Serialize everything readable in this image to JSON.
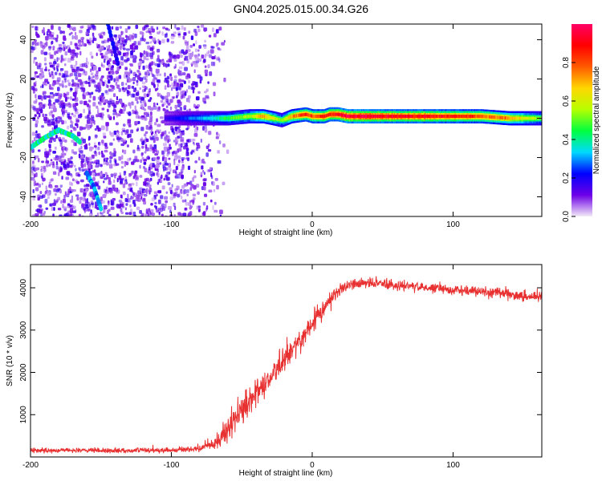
{
  "title": "GN04.2025.015.00.34.G26",
  "chart_data": [
    {
      "type": "heatmap",
      "xlabel": "Height of straight line (km)",
      "ylabel": "Frequency (Hz)",
      "xlim": [
        -200,
        163
      ],
      "ylim": [
        -50,
        48
      ],
      "xticks": [
        -200,
        -100,
        0,
        100
      ],
      "yticks": [
        -40,
        -20,
        0,
        20,
        40
      ],
      "grid": false,
      "noise_region_x": [
        -200,
        -65
      ],
      "ridge": {
        "x": [
          -105,
          -90,
          -80,
          -60,
          -45,
          -35,
          -28,
          -22,
          -15,
          -5,
          0,
          8,
          12,
          18,
          25,
          40,
          60,
          80,
          100,
          120,
          140,
          163
        ],
        "y": [
          0,
          0,
          0,
          0,
          1,
          1,
          0,
          -1,
          1,
          2,
          1,
          1,
          2,
          2,
          1,
          1,
          1,
          1,
          1,
          1,
          0,
          0
        ],
        "amplitude": [
          0.15,
          0.25,
          0.3,
          0.45,
          0.55,
          0.7,
          0.6,
          0.5,
          0.7,
          0.85,
          0.8,
          0.85,
          0.85,
          0.9,
          0.95,
          0.95,
          0.9,
          0.9,
          0.85,
          0.8,
          0.7,
          0.5
        ]
      },
      "streaks": [
        {
          "x": [
            -145,
            -138
          ],
          "y": [
            48,
            28
          ],
          "amplitude": 0.2
        },
        {
          "x": [
            -200,
            -190,
            -180,
            -170,
            -165
          ],
          "y": [
            -15,
            -10,
            -6,
            -9,
            -12
          ],
          "amplitude": 0.4
        },
        {
          "x": [
            -160,
            -155,
            -150
          ],
          "y": [
            -28,
            -35,
            -46
          ],
          "amplitude": 0.3
        }
      ],
      "colorbar": {
        "label": "Normalized spectral amplitude",
        "ticks": [
          0.0,
          0.2,
          0.4,
          0.6,
          0.8
        ],
        "range": [
          0,
          1
        ],
        "stops": [
          "#f2eaf7",
          "#6d00e6",
          "#0000ff",
          "#00d9ff",
          "#00ff40",
          "#b6ff00",
          "#ffd700",
          "#ff5a00",
          "#ff0000",
          "#ff0066"
        ]
      }
    },
    {
      "type": "line",
      "xlabel": "Height of straight line (km)",
      "ylabel": "SNR (10 * v/v)",
      "xlim": [
        -200,
        163
      ],
      "ylim": [
        0,
        4550
      ],
      "xticks": [
        -200,
        -100,
        0,
        100
      ],
      "yticks": [
        1000,
        2000,
        3000,
        4000
      ],
      "grid": false,
      "series": [
        {
          "color": "#e83030",
          "x": [
            -200,
            -180,
            -160,
            -140,
            -120,
            -100,
            -90,
            -80,
            -70,
            -65,
            -60,
            -55,
            -50,
            -45,
            -40,
            -35,
            -30,
            -25,
            -20,
            -15,
            -10,
            -5,
            0,
            5,
            10,
            15,
            20,
            25,
            30,
            40,
            50,
            60,
            70,
            80,
            90,
            100,
            110,
            120,
            130,
            140,
            150,
            163
          ],
          "y": [
            150,
            160,
            150,
            150,
            160,
            160,
            180,
            200,
            300,
            450,
            650,
            900,
            1100,
            1300,
            1500,
            1650,
            1850,
            2050,
            2300,
            2500,
            2700,
            2900,
            3150,
            3400,
            3600,
            3800,
            3950,
            4050,
            4100,
            4100,
            4100,
            4050,
            4050,
            4000,
            4000,
            3950,
            3950,
            3900,
            3900,
            3850,
            3800,
            3800
          ],
          "noise": [
            70,
            70,
            70,
            70,
            70,
            70,
            80,
            90,
            150,
            250,
            350,
            400,
            450,
            450,
            400,
            400,
            400,
            400,
            400,
            400,
            350,
            350,
            350,
            300,
            300,
            250,
            200,
            180,
            160,
            150,
            150,
            150,
            150,
            150,
            150,
            150,
            150,
            150,
            150,
            150,
            150,
            150
          ]
        }
      ]
    }
  ]
}
